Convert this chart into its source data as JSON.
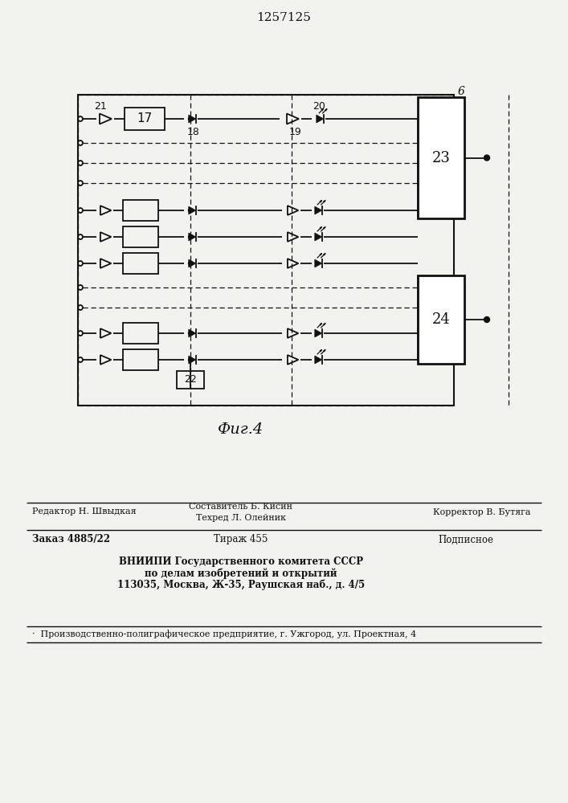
{
  "title": "1257125",
  "fig_label": "Фиг.4",
  "bg_color": "#f2f2ee",
  "line_color": "#111111",
  "footer": {
    "line1_left": "Редактор Н. Швыдкая",
    "line1_center_top": "Составитель Б. Кисин",
    "line1_center_bot": "Техред Л. Олейник",
    "line1_right": "Корректор В. Бутяга",
    "line2_left": "Заказ 4885/22",
    "line2_center": "Тираж 455",
    "line2_right": "Подписное",
    "line3a": "ВНИИПИ Государственного комитета СССР",
    "line3b": "по делам изобретений и открытий",
    "line3c": "113035, Москва, Ж-35, Раушская наб., д. 4/5",
    "line4": "·  Производственно-полиграфическое предприятие, г. Ужгород, ул. Проектная, 4"
  }
}
